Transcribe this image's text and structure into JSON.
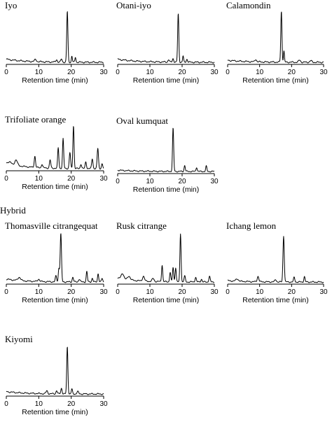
{
  "section_label": "Hybrid",
  "chart_data": [
    {
      "type": "line",
      "title": "Iyo",
      "xlabel": "Retention time (min)",
      "xlim": [
        0,
        30
      ],
      "xticks": [
        0,
        10,
        20,
        30
      ],
      "baseline": 0.06,
      "peaks": [
        [
          18.8,
          1.0,
          0.18
        ],
        [
          20.2,
          0.12,
          0.15
        ],
        [
          21.3,
          0.1,
          0.15
        ],
        [
          17.0,
          0.06,
          0.2
        ],
        [
          15.5,
          0.05,
          0.2
        ],
        [
          9.0,
          0.04,
          0.3
        ]
      ]
    },
    {
      "type": "line",
      "title": "Otani-iyo",
      "xlabel": "Retention time (min)",
      "xlim": [
        0,
        30
      ],
      "xticks": [
        0,
        10,
        20,
        30
      ],
      "baseline": 0.06,
      "peaks": [
        [
          18.8,
          0.95,
          0.18
        ],
        [
          20.3,
          0.12,
          0.15
        ],
        [
          17.2,
          0.07,
          0.2
        ],
        [
          21.5,
          0.06,
          0.2
        ],
        [
          15.8,
          0.05,
          0.2
        ]
      ]
    },
    {
      "type": "line",
      "title": "Calamondin",
      "xlabel": "Retention time (min)",
      "xlim": [
        0,
        30
      ],
      "xticks": [
        0,
        10,
        20,
        30
      ],
      "baseline": 0.04,
      "peaks": [
        [
          16.8,
          1.0,
          0.18
        ],
        [
          17.6,
          0.22,
          0.15
        ],
        [
          8.8,
          0.05,
          0.25
        ],
        [
          22.5,
          0.04,
          0.3
        ],
        [
          26.0,
          0.03,
          0.3
        ]
      ]
    },
    {
      "type": "line",
      "title": "Trifoliate orange",
      "xlabel": "Retention time (min)",
      "xlim": [
        0,
        30
      ],
      "xticks": [
        0,
        10,
        20,
        30
      ],
      "baseline": 0.12,
      "peaks": [
        [
          20.7,
          0.95,
          0.18
        ],
        [
          17.5,
          0.65,
          0.18
        ],
        [
          16.0,
          0.45,
          0.18
        ],
        [
          28.2,
          0.45,
          0.2
        ],
        [
          19.6,
          0.35,
          0.2
        ],
        [
          8.8,
          0.25,
          0.2
        ],
        [
          13.5,
          0.18,
          0.2
        ],
        [
          26.5,
          0.22,
          0.2
        ],
        [
          24.5,
          0.15,
          0.2
        ],
        [
          11.0,
          0.08,
          0.2
        ],
        [
          3.0,
          0.12,
          0.4
        ],
        [
          1.0,
          0.05,
          0.5
        ],
        [
          23.0,
          0.1,
          0.2
        ],
        [
          29.5,
          0.1,
          0.2
        ]
      ]
    },
    {
      "type": "line",
      "title": "Oval kumquat",
      "xlabel": "Retention time (min)",
      "xlim": [
        0,
        30
      ],
      "xticks": [
        0,
        10,
        20,
        30
      ],
      "baseline": 0.03,
      "peaks": [
        [
          17.2,
          1.0,
          0.18
        ],
        [
          20.8,
          0.14,
          0.18
        ],
        [
          24.5,
          0.1,
          0.18
        ],
        [
          27.5,
          0.12,
          0.18
        ]
      ]
    },
    {
      "type": "line",
      "title": "Thomasville citrangequat",
      "xlabel": "Retention time (min)",
      "xlim": [
        0,
        30
      ],
      "xticks": [
        0,
        10,
        20,
        30
      ],
      "baseline": 0.06,
      "peaks": [
        [
          16.8,
          1.0,
          0.2
        ],
        [
          16.2,
          0.28,
          0.18
        ],
        [
          15.3,
          0.12,
          0.2
        ],
        [
          20.5,
          0.1,
          0.2
        ],
        [
          24.8,
          0.22,
          0.18
        ],
        [
          28.3,
          0.18,
          0.18
        ],
        [
          26.5,
          0.08,
          0.2
        ],
        [
          4.0,
          0.07,
          0.4
        ],
        [
          10.0,
          0.05,
          0.3
        ],
        [
          22.5,
          0.06,
          0.25
        ],
        [
          29.5,
          0.07,
          0.2
        ]
      ]
    },
    {
      "type": "line",
      "title": "Rusk citrange",
      "xlabel": "Retention time (min)",
      "xlim": [
        0,
        30
      ],
      "xticks": [
        0,
        10,
        20,
        30
      ],
      "baseline": 0.08,
      "peaks": [
        [
          19.5,
          1.0,
          0.18
        ],
        [
          13.8,
          0.35,
          0.18
        ],
        [
          18.0,
          0.3,
          0.18
        ],
        [
          17.2,
          0.3,
          0.18
        ],
        [
          16.3,
          0.2,
          0.18
        ],
        [
          20.8,
          0.12,
          0.2
        ],
        [
          24.2,
          0.1,
          0.2
        ],
        [
          28.5,
          0.12,
          0.2
        ],
        [
          1.5,
          0.12,
          0.4
        ],
        [
          3.5,
          0.08,
          0.4
        ],
        [
          8.0,
          0.1,
          0.3
        ],
        [
          11.0,
          0.06,
          0.3
        ],
        [
          26.0,
          0.06,
          0.2
        ]
      ]
    },
    {
      "type": "line",
      "title": "Ichang lemon",
      "xlabel": "Retention time (min)",
      "xlim": [
        0,
        30
      ],
      "xticks": [
        0,
        10,
        20,
        30
      ],
      "baseline": 0.03,
      "peaks": [
        [
          17.5,
          1.0,
          0.2
        ],
        [
          9.5,
          0.12,
          0.25
        ],
        [
          20.8,
          0.1,
          0.2
        ],
        [
          24.0,
          0.12,
          0.18
        ],
        [
          3.0,
          0.05,
          0.4
        ],
        [
          15.0,
          0.05,
          0.25
        ]
      ]
    },
    {
      "type": "line",
      "title": "Kiyomi",
      "xlabel": "Retention time (min)",
      "xlim": [
        0,
        30
      ],
      "xticks": [
        0,
        10,
        20,
        30
      ],
      "baseline": 0.05,
      "peaks": [
        [
          18.8,
          1.0,
          0.18
        ],
        [
          17.0,
          0.12,
          0.2
        ],
        [
          20.2,
          0.1,
          0.18
        ],
        [
          12.5,
          0.06,
          0.25
        ],
        [
          15.5,
          0.07,
          0.2
        ],
        [
          22.0,
          0.05,
          0.25
        ]
      ]
    }
  ]
}
